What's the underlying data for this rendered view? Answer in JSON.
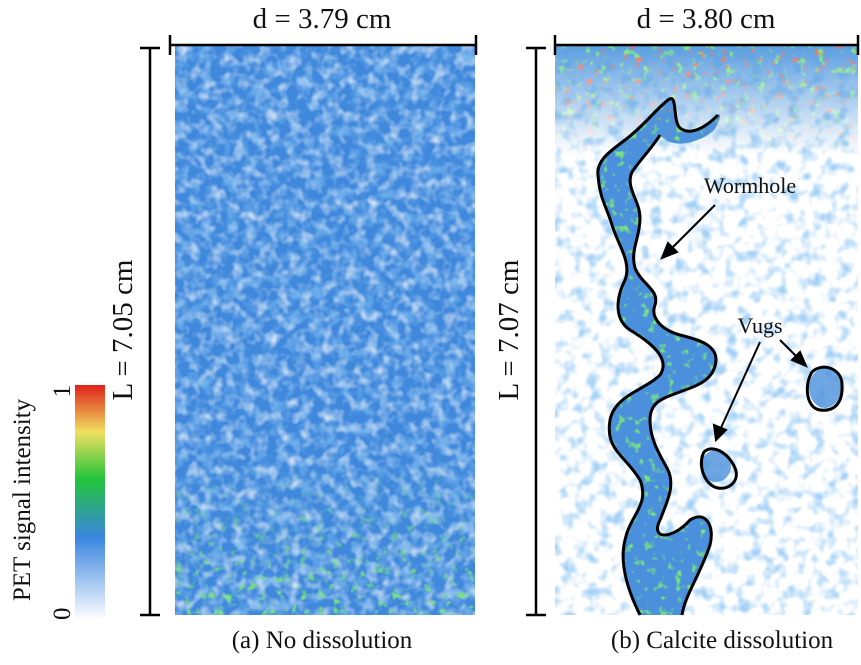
{
  "panels": [
    {
      "width_label": "d = 3.79 cm",
      "length_label": "L = 7.05 cm",
      "caption": "(a) No dissolution"
    },
    {
      "width_label": "d = 3.80 cm",
      "length_label": "L = 7.07 cm",
      "caption": "(b) Calcite dissolution",
      "annotations": [
        "Wormhole",
        "Vugs"
      ]
    }
  ],
  "colorbar": {
    "label": "PET signal intensity",
    "max": 1,
    "min": 0
  }
}
